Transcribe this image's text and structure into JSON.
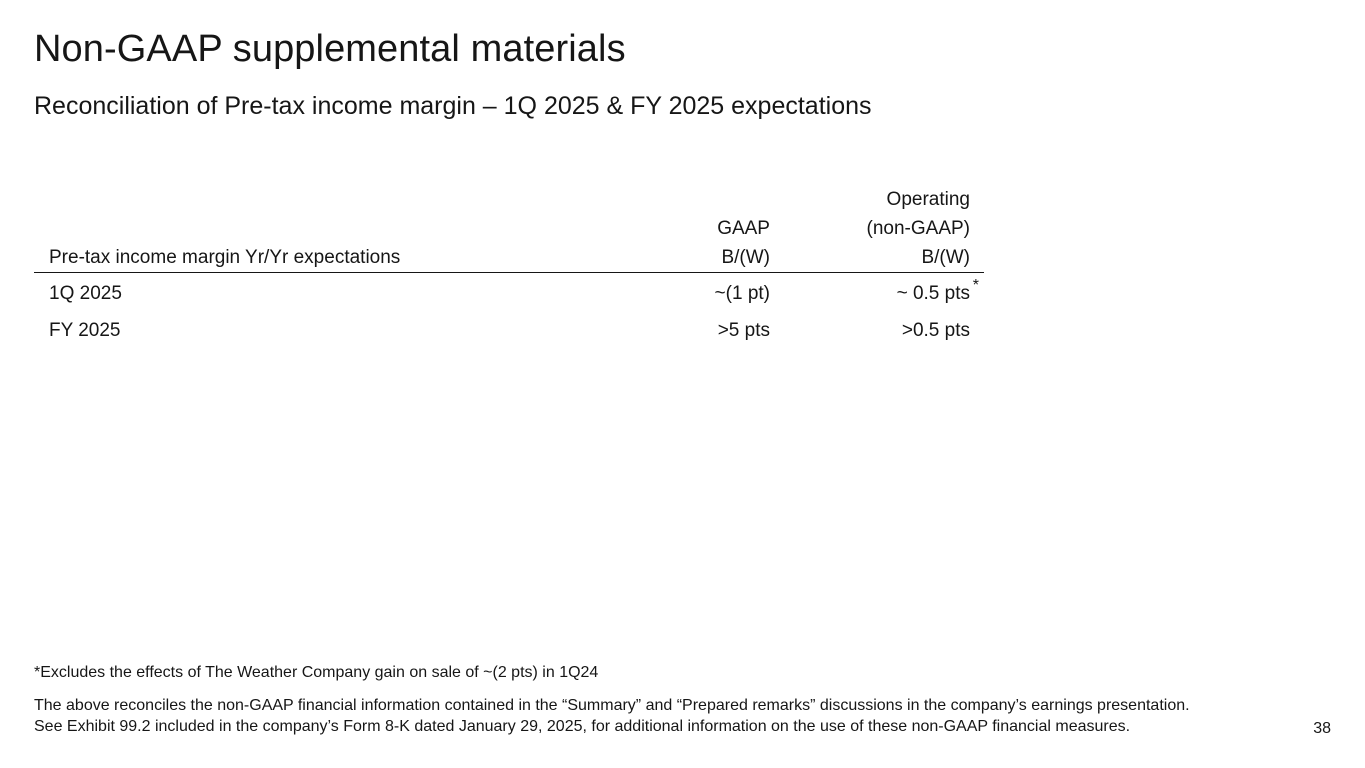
{
  "title": "Non-GAAP supplemental materials",
  "subtitle": "Reconciliation of Pre-tax income margin – 1Q 2025 & FY 2025 expectations",
  "table": {
    "header": {
      "label": "Pre-tax income margin Yr/Yr expectations",
      "gaap": [
        "GAAP",
        "B/(W)"
      ],
      "operating": [
        "Operating",
        "(non-GAAP)",
        "B/(W)"
      ]
    },
    "rows": [
      {
        "label": "1Q 2025",
        "gaap": "~(1 pt)",
        "operating": "~ 0.5 pts",
        "marker": "*"
      },
      {
        "label": "FY 2025",
        "gaap": ">5 pts",
        "operating": ">0.5 pts",
        "marker": ""
      }
    ]
  },
  "footnote": "*Excludes the effects of The Weather Company gain on sale of ~(2 pts) in 1Q24",
  "disclaimer": [
    "The above reconciles the non-GAAP financial information contained in the “Summary” and “Prepared remarks” discussions in the company’s earnings presentation.",
    "See Exhibit 99.2 included in the company’s Form 8-K dated January 29, 2025, for additional information on the use of these non-GAAP financial measures."
  ],
  "page_number": "38"
}
